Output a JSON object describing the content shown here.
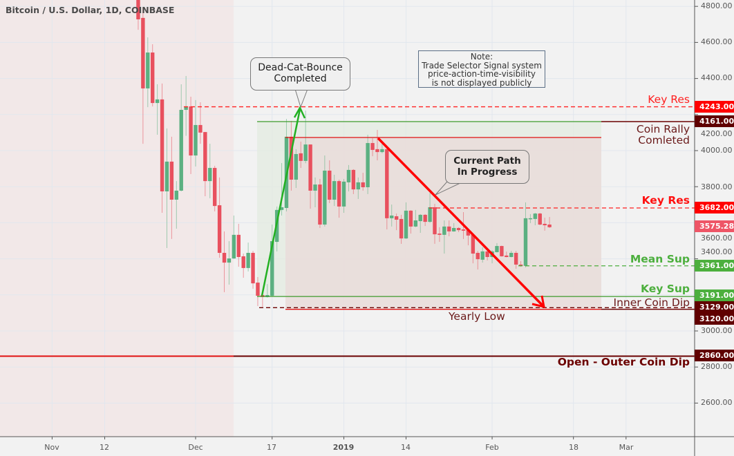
{
  "header": {
    "title": "Bitcoin / U.S. Dollar, 1D, COINBASE"
  },
  "colors": {
    "up": "#5bb081",
    "down": "#e8505e",
    "key_red": "#ff0000",
    "dark_red": "#600000",
    "support_green": "#4caf3d",
    "last_price": "#ee5566"
  },
  "chart_data": {
    "type": "candlestick",
    "title": "Bitcoin / U.S. Dollar, 1D, COINBASE",
    "ylim": [
      2450,
      4830
    ],
    "y_scale": "linear",
    "grid": true,
    "y_ticks": [
      "4800.00",
      "4600.00",
      "4400.00",
      "4200.00",
      "4000.00",
      "3800.00",
      "3600.00",
      "3400.00",
      "3000.00",
      "2800.00",
      "2600.00"
    ],
    "y_tick_values": [
      4800,
      4600,
      4400,
      4200,
      4000,
      3800,
      3600,
      3400,
      3000,
      2800,
      2600
    ],
    "x_ticks": [
      {
        "label": "Nov",
        "date": "2018-11-01"
      },
      {
        "label": "12",
        "date": "2018-11-12"
      },
      {
        "label": "Dec",
        "date": "2018-12-01"
      },
      {
        "label": "17",
        "date": "2018-12-17"
      },
      {
        "label": "2019",
        "date": "2019-01-01"
      },
      {
        "label": "14",
        "date": "2019-01-14"
      },
      {
        "label": "Feb",
        "date": "2019-02-01"
      },
      {
        "label": "18",
        "date": "2019-02-18"
      },
      {
        "label": "Mar",
        "date": "2019-03-01"
      }
    ],
    "columns": [
      "date",
      "open",
      "high",
      "low",
      "close"
    ],
    "candles": [
      [
        "2018-11-19",
        4865,
        4900,
        4670,
        4728
      ],
      [
        "2018-11-20",
        4736,
        4790,
        4038,
        4345
      ],
      [
        "2018-11-21",
        4345,
        4628,
        4241,
        4544
      ],
      [
        "2018-11-22",
        4544,
        4590,
        4245,
        4264
      ],
      [
        "2018-11-23",
        4264,
        4368,
        4088,
        4284
      ],
      [
        "2018-11-24",
        4284,
        4372,
        3655,
        3774
      ],
      [
        "2018-11-25",
        3774,
        4123,
        3460,
        3939
      ],
      [
        "2018-11-26",
        3939,
        4077,
        3510,
        3728
      ],
      [
        "2018-11-27",
        3728,
        3831,
        3567,
        3778
      ],
      [
        "2018-11-28",
        3778,
        4368,
        3774,
        4226
      ],
      [
        "2018-11-29",
        4226,
        4414,
        4082,
        4245
      ],
      [
        "2018-11-30",
        4245,
        4299,
        3870,
        3973
      ],
      [
        "2018-12-01",
        3973,
        4280,
        3912,
        4142
      ],
      [
        "2018-12-02",
        4142,
        4268,
        4038,
        4100
      ],
      [
        "2018-12-03",
        4103,
        4103,
        3747,
        3831
      ],
      [
        "2018-12-04",
        3831,
        4038,
        3736,
        3904
      ],
      [
        "2018-12-05",
        3904,
        3916,
        3663,
        3693
      ],
      [
        "2018-12-06",
        3697,
        3851,
        3406,
        3433
      ],
      [
        "2018-12-07",
        3433,
        3552,
        3215,
        3379
      ],
      [
        "2018-12-08",
        3379,
        3498,
        3257,
        3402
      ],
      [
        "2018-12-09",
        3402,
        3640,
        3400,
        3533
      ],
      [
        "2018-12-10",
        3533,
        3594,
        3356,
        3410
      ],
      [
        "2018-12-11",
        3414,
        3429,
        3295,
        3349
      ],
      [
        "2018-12-12",
        3349,
        3490,
        3330,
        3433
      ],
      [
        "2018-12-13",
        3433,
        3444,
        3234,
        3264
      ],
      [
        "2018-12-14",
        3268,
        3299,
        3138,
        3195
      ],
      [
        "2018-12-15",
        3199,
        3205,
        3134,
        3188
      ],
      [
        "2018-12-16",
        3188,
        3260,
        3185,
        3199
      ],
      [
        "2018-12-17",
        3195,
        3590,
        3190,
        3498
      ],
      [
        "2018-12-18",
        3494,
        3690,
        3441,
        3671
      ],
      [
        "2018-12-19",
        3671,
        3931,
        3640,
        3686
      ],
      [
        "2018-12-20",
        3682,
        4176,
        3663,
        4077
      ],
      [
        "2018-12-21",
        4077,
        4165,
        3778,
        3839
      ],
      [
        "2018-12-22",
        3839,
        4008,
        3793,
        3981
      ],
      [
        "2018-12-23",
        3985,
        4050,
        3904,
        3943
      ],
      [
        "2018-12-24",
        3943,
        4222,
        3930,
        4034
      ],
      [
        "2018-12-25",
        4034,
        4034,
        3678,
        3778
      ],
      [
        "2018-12-26",
        3778,
        3851,
        3686,
        3812
      ],
      [
        "2018-12-27",
        3812,
        3843,
        3571,
        3590
      ],
      [
        "2018-12-28",
        3590,
        3973,
        3579,
        3889
      ],
      [
        "2018-12-29",
        3889,
        3946,
        3709,
        3728
      ],
      [
        "2018-12-30",
        3728,
        3866,
        3693,
        3831
      ],
      [
        "2018-12-31",
        3831,
        3839,
        3628,
        3690
      ],
      [
        "2019-01-01",
        3690,
        3843,
        3655,
        3828
      ],
      [
        "2019-01-02",
        3824,
        3920,
        3774,
        3893
      ],
      [
        "2019-01-03",
        3893,
        3897,
        3759,
        3785
      ],
      [
        "2019-01-04",
        3785,
        3851,
        3732,
        3824
      ],
      [
        "2019-01-05",
        3824,
        3877,
        3778,
        3797
      ],
      [
        "2019-01-06",
        3797,
        4088,
        3759,
        4042
      ],
      [
        "2019-01-07",
        4042,
        4069,
        3969,
        4004
      ],
      [
        "2019-01-08",
        4008,
        4115,
        3946,
        3992
      ],
      [
        "2019-01-09",
        3992,
        4038,
        3985,
        4008
      ],
      [
        "2019-01-10",
        4008,
        4010,
        3563,
        3625
      ],
      [
        "2019-01-11",
        3625,
        3701,
        3579,
        3640
      ],
      [
        "2019-01-12",
        3636,
        3651,
        3559,
        3617
      ],
      [
        "2019-01-13",
        3621,
        3644,
        3483,
        3513
      ],
      [
        "2019-01-14",
        3513,
        3713,
        3510,
        3667
      ],
      [
        "2019-01-15",
        3667,
        3670,
        3540,
        3579
      ],
      [
        "2019-01-16",
        3579,
        3671,
        3575,
        3613
      ],
      [
        "2019-01-17",
        3609,
        3648,
        3544,
        3644
      ],
      [
        "2019-01-18",
        3644,
        3648,
        3582,
        3605
      ],
      [
        "2019-01-19",
        3605,
        3766,
        3600,
        3686
      ],
      [
        "2019-01-20",
        3686,
        3705,
        3483,
        3536
      ],
      [
        "2019-01-21",
        3540,
        3575,
        3494,
        3533
      ],
      [
        "2019-01-22",
        3533,
        3613,
        3429,
        3579
      ],
      [
        "2019-01-23",
        3579,
        3613,
        3525,
        3552
      ],
      [
        "2019-01-24",
        3552,
        3598,
        3550,
        3571
      ],
      [
        "2019-01-25",
        3571,
        3575,
        3548,
        3559
      ],
      [
        "2019-01-26",
        3563,
        3659,
        3510,
        3556
      ],
      [
        "2019-01-27",
        3559,
        3562,
        3475,
        3529
      ],
      [
        "2019-01-28",
        3533,
        3535,
        3375,
        3429
      ],
      [
        "2019-01-29",
        3433,
        3444,
        3341,
        3398
      ],
      [
        "2019-01-30",
        3395,
        3464,
        3379,
        3441
      ],
      [
        "2019-01-31",
        3441,
        3452,
        3391,
        3410
      ],
      [
        "2019-02-01",
        3410,
        3448,
        3375,
        3441
      ],
      [
        "2019-02-02",
        3437,
        3487,
        3435,
        3471
      ],
      [
        "2019-02-03",
        3471,
        3473,
        3412,
        3414
      ],
      [
        "2019-02-04",
        3418,
        3440,
        3408,
        3410
      ],
      [
        "2019-02-05",
        3410,
        3444,
        3408,
        3433
      ],
      [
        "2019-02-06",
        3433,
        3444,
        3345,
        3368
      ],
      [
        "2019-02-07",
        3368,
        3387,
        3356,
        3361
      ],
      [
        "2019-02-08",
        3361,
        3713,
        3352,
        3625
      ],
      [
        "2019-02-09",
        3621,
        3648,
        3598,
        3625
      ],
      [
        "2019-02-10",
        3621,
        3655,
        3586,
        3651
      ],
      [
        "2019-02-11",
        3651,
        3655,
        3586,
        3590
      ],
      [
        "2019-02-12",
        3594,
        3628,
        3556,
        3586
      ],
      [
        "2019-02-13",
        3590,
        3632,
        3571,
        3575.28
      ]
    ]
  },
  "levels": {
    "key_res_upper": {
      "price": 4243,
      "badge": "4243.00",
      "label": "Key Res"
    },
    "coin_rally": {
      "price": 4161,
      "badge": "4161.00",
      "label_line1": "Coin Rally",
      "label_line2": "Comleted"
    },
    "key_res": {
      "price": 3682,
      "badge": "3682.00",
      "label": "Key Res"
    },
    "last_price": {
      "price": 3575.28,
      "badge": "3575.28"
    },
    "mean_sup": {
      "price": 3361,
      "badge": "3361.00",
      "label": "Mean Sup"
    },
    "key_sup": {
      "price": 3191,
      "badge": "3191.00",
      "label": "Key Sup"
    },
    "inner_coin_dip": {
      "price": 3129,
      "badge": "3129.00",
      "label": "Inner Coin Dip"
    },
    "yearly_low": {
      "price": 3120,
      "badge": "3120.00",
      "label": "Yearly Low"
    },
    "outer_coin_dip": {
      "price": 2860,
      "badge": "2860.00",
      "label": "Open - Outer Coin Dip"
    }
  },
  "annotations": {
    "dead_cat_line1": "Dead-Cat-Bounce",
    "dead_cat_line2": "Completed",
    "current_path_line1": "Current Path",
    "current_path_line2": "In Progress",
    "note_line1": "Note:",
    "note_line2": "Trade Selector Signal system",
    "note_line3": "price-action-time-visibility",
    "note_line4": "is not displayed publicly"
  }
}
